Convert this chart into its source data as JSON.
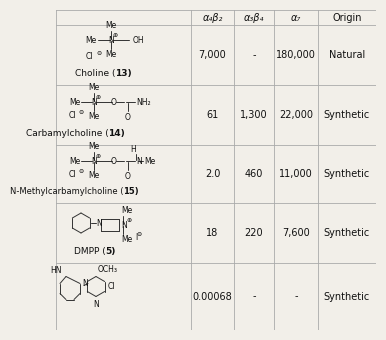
{
  "col_headers": [
    "α₄β₂",
    "α₃β₄",
    "α₇",
    "Origin"
  ],
  "rows": [
    {
      "structure_label": "Choline (13)",
      "label_bold": "13",
      "values": [
        "7,000",
        "-",
        "180,000",
        "Natural"
      ]
    },
    {
      "structure_label": "Carbamylcholine (14)",
      "label_bold": "14",
      "values": [
        "61",
        "1,300",
        "22,000",
        "Synthetic"
      ]
    },
    {
      "structure_label": "N-Methylcarbamylcholine (15)",
      "label_bold": "15",
      "values": [
        "2.0",
        "460",
        "11,000",
        "Synthetic"
      ]
    },
    {
      "structure_label": "DMPP (5)",
      "label_bold": "5",
      "values": [
        "18",
        "220",
        "7,600",
        "Synthetic"
      ]
    },
    {
      "structure_label": "",
      "label_bold": "",
      "values": [
        "0.00068",
        "-",
        "-",
        "Synthetic"
      ]
    }
  ],
  "bg_color": "#f2efe9",
  "line_color": "#aaaaaa",
  "text_color": "#111111",
  "header_fontsize": 7.0,
  "cell_fontsize": 7.0,
  "label_fontsize": 6.5,
  "struct_fontsize": 5.5,
  "fig_width": 3.2,
  "fig_height": 3.2
}
